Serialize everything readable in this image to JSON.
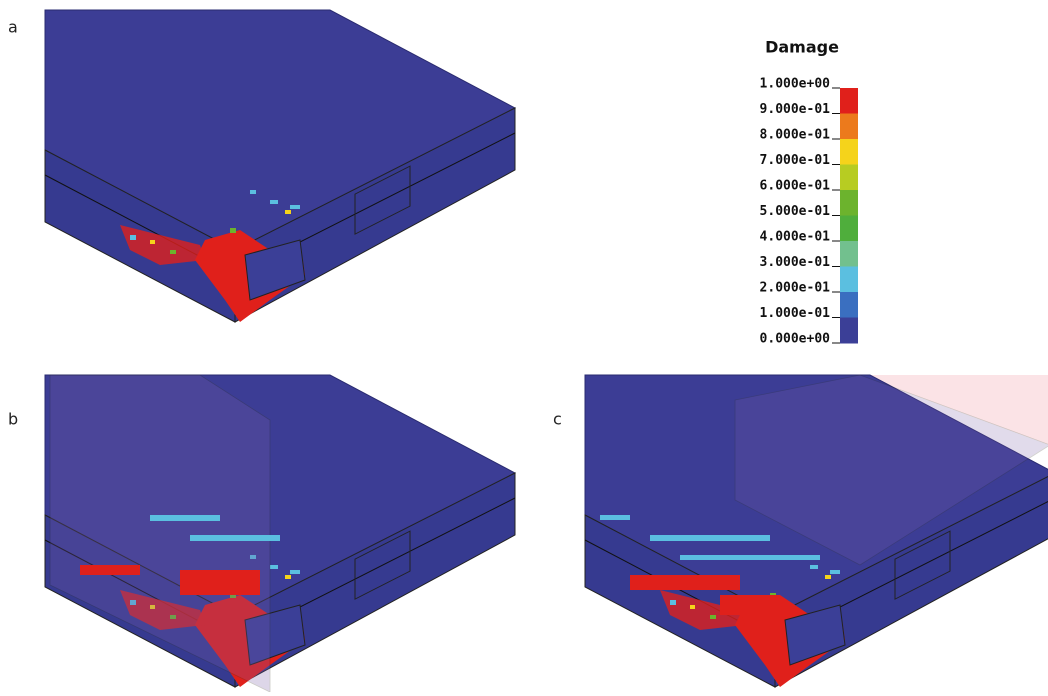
{
  "panels": [
    {
      "label": "a"
    },
    {
      "label": "b"
    },
    {
      "label": "c"
    }
  ],
  "legend": {
    "title": "Damage",
    "labels": [
      "1.000e+00",
      "9.000e-01",
      "8.000e-01",
      "7.000e-01",
      "6.000e-01",
      "5.000e-01",
      "4.000e-01",
      "3.000e-01",
      "2.000e-01",
      "1.000e-01",
      "0.000e+00"
    ],
    "colors": [
      "#e0201b",
      "#ec7a1c",
      "#f5d31b",
      "#b7cc22",
      "#6cb32d",
      "#4fae3c",
      "#72c08e",
      "#5bbfe0",
      "#3a6fc0",
      "#3b3f97"
    ]
  }
}
